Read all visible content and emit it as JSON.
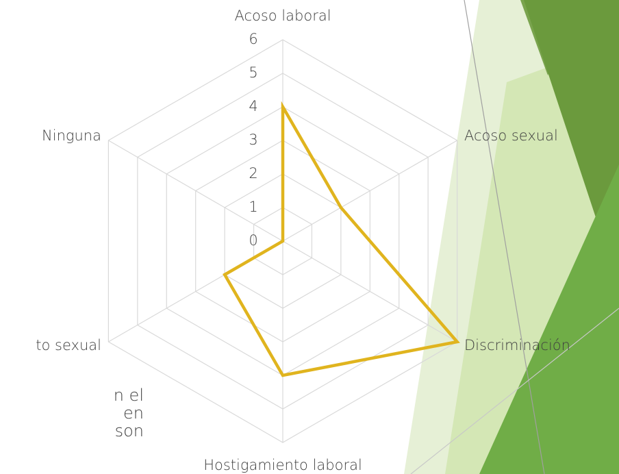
{
  "chart_data": {
    "type": "radar",
    "categories": [
      "Acoso laboral",
      "Acoso sexual",
      "Discriminación",
      "Hostigamiento laboral",
      "to sexual",
      "Ninguna"
    ],
    "series": [
      {
        "color": "#e0b41e",
        "values": [
          4,
          2,
          6,
          4,
          2,
          0
        ]
      }
    ],
    "ylim": [
      0,
      6
    ],
    "yticks": [
      0,
      1,
      2,
      3,
      4,
      5,
      6
    ],
    "grid": true
  },
  "slide_text": [
    "n el",
    "en",
    "son"
  ]
}
